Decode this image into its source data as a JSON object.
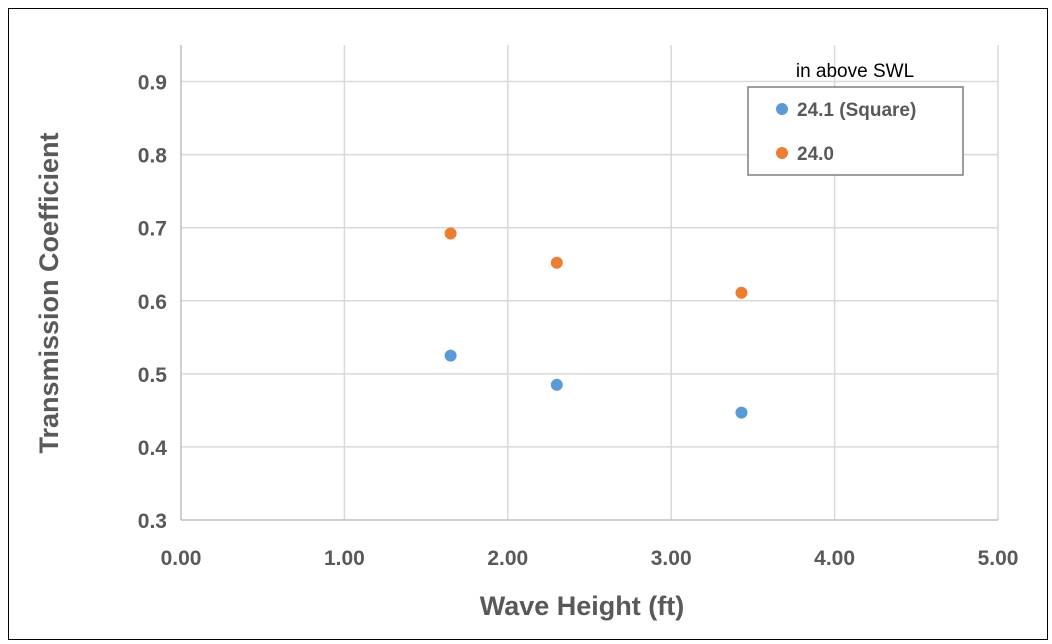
{
  "chart_data": {
    "type": "scatter",
    "title": "",
    "xlabel": "Wave Height (ft)",
    "ylabel": "Transmission Coefficient",
    "xlim": [
      0,
      5
    ],
    "ylim": [
      0.3,
      0.95
    ],
    "x_ticks": [
      "0.00",
      "1.00",
      "2.00",
      "3.00",
      "4.00",
      "5.00"
    ],
    "y_ticks": [
      "0.3",
      "0.4",
      "0.5",
      "0.6",
      "0.7",
      "0.8",
      "0.9"
    ],
    "x_tick_values": [
      0,
      1,
      2,
      3,
      4,
      5
    ],
    "y_tick_values": [
      0.3,
      0.4,
      0.5,
      0.6,
      0.7,
      0.8,
      0.9
    ],
    "grid": true,
    "legend": {
      "title": "in above SWL",
      "placement": "top-right"
    },
    "series": [
      {
        "name": "24.1 (Square)",
        "color": "#5B9BD5",
        "points": [
          {
            "x": 1.65,
            "y": 0.525
          },
          {
            "x": 2.3,
            "y": 0.485
          },
          {
            "x": 3.43,
            "y": 0.447
          }
        ]
      },
      {
        "name": "24.0",
        "color": "#ED7D31",
        "points": [
          {
            "x": 1.65,
            "y": 0.692
          },
          {
            "x": 2.3,
            "y": 0.652
          },
          {
            "x": 3.43,
            "y": 0.611
          }
        ]
      }
    ]
  }
}
